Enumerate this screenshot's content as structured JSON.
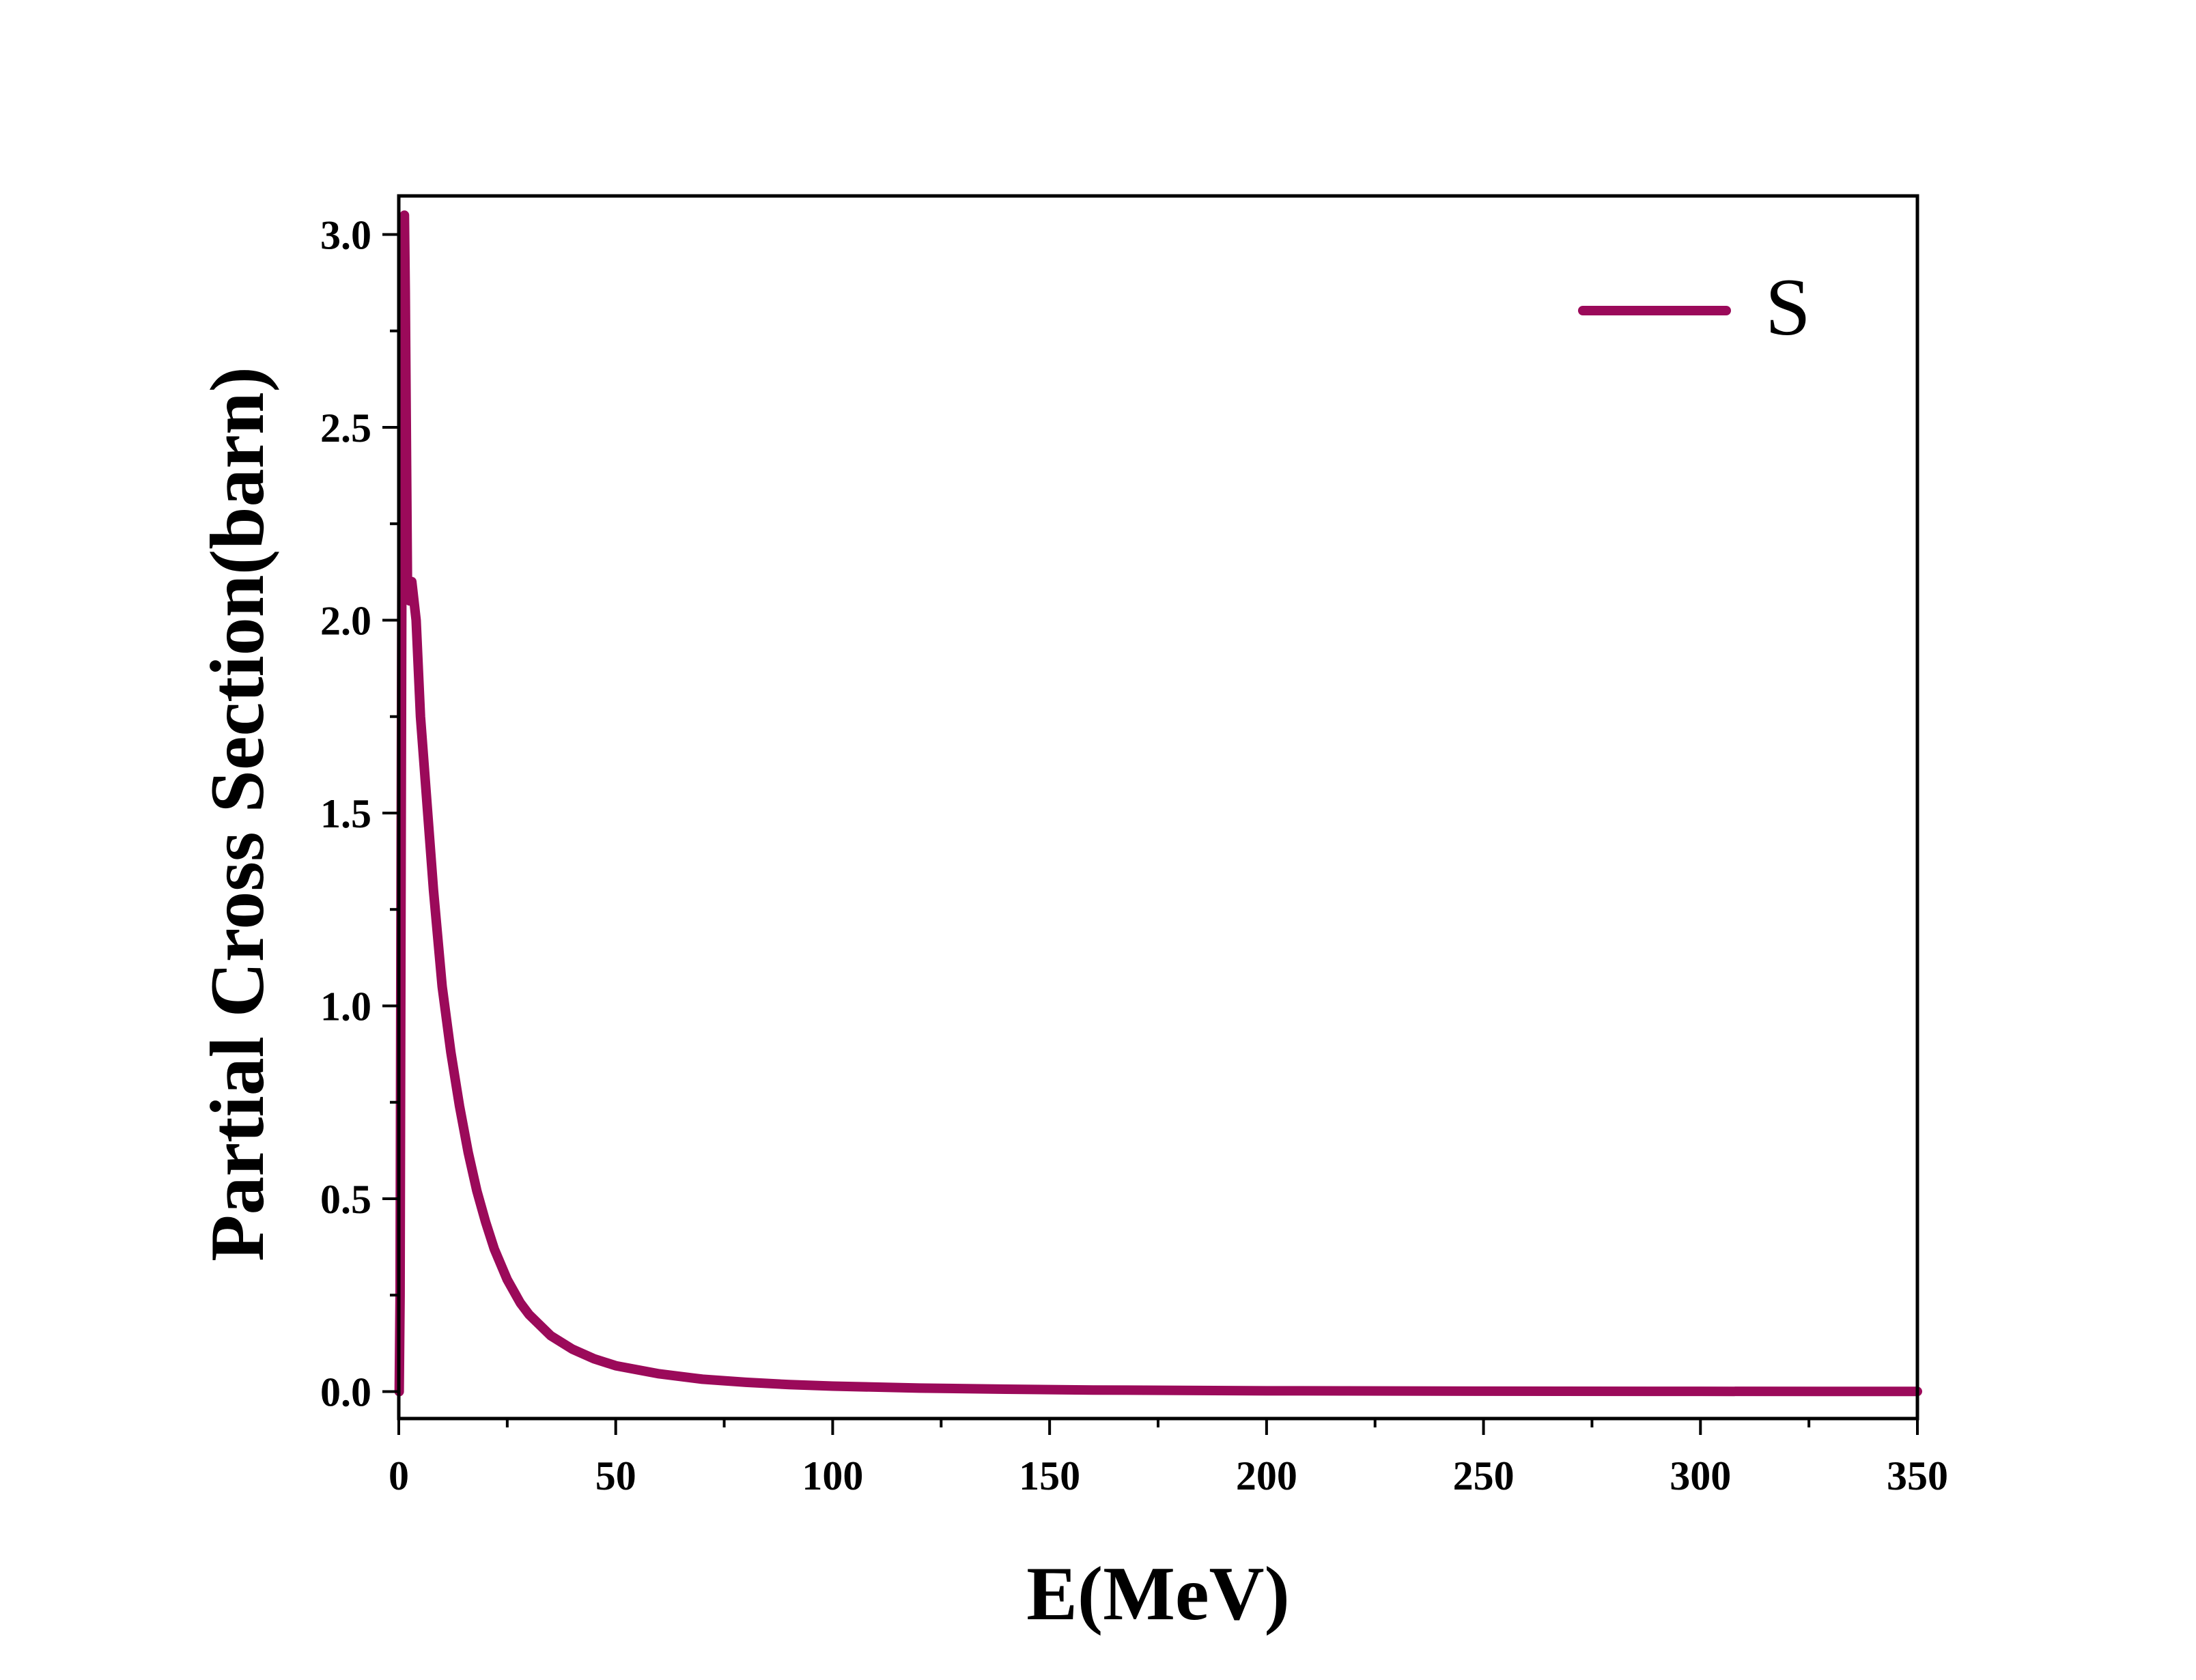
{
  "chart_data": {
    "type": "line",
    "title": "",
    "xlabel": "E(MeV)",
    "ylabel": "Partial Cross Section(barn)",
    "xlim": [
      0,
      350
    ],
    "ylim": [
      -0.07,
      3.1
    ],
    "x_ticks": [
      "0",
      "50",
      "100",
      "150",
      "200",
      "250",
      "300",
      "350"
    ],
    "y_ticks": [
      "0.0",
      "0.5",
      "1.0",
      "1.5",
      "2.0",
      "2.5",
      "3.0"
    ],
    "grid": false,
    "legend_position": "top-right",
    "series": [
      {
        "name": "S",
        "color": "#9B0A5A",
        "x": [
          0.1,
          0.3,
          0.5,
          0.8,
          1.0,
          1.3,
          1.5,
          1.8,
          2.0,
          2.5,
          3,
          4,
          5,
          6,
          7,
          8,
          10,
          12,
          14,
          16,
          18,
          20,
          22,
          25,
          28,
          30,
          35,
          40,
          45,
          50,
          60,
          70,
          80,
          90,
          100,
          120,
          140,
          160,
          180,
          200,
          250,
          300,
          350
        ],
        "y": [
          0.0,
          0.25,
          1.2,
          2.5,
          2.9,
          3.05,
          2.85,
          2.4,
          2.1,
          2.05,
          2.1,
          2.0,
          1.75,
          1.6,
          1.45,
          1.3,
          1.05,
          0.88,
          0.74,
          0.62,
          0.52,
          0.44,
          0.37,
          0.29,
          0.23,
          0.2,
          0.145,
          0.11,
          0.085,
          0.067,
          0.046,
          0.032,
          0.024,
          0.018,
          0.014,
          0.009,
          0.006,
          0.004,
          0.003,
          0.002,
          0.001,
          0.0005,
          0.0003
        ]
      }
    ]
  }
}
